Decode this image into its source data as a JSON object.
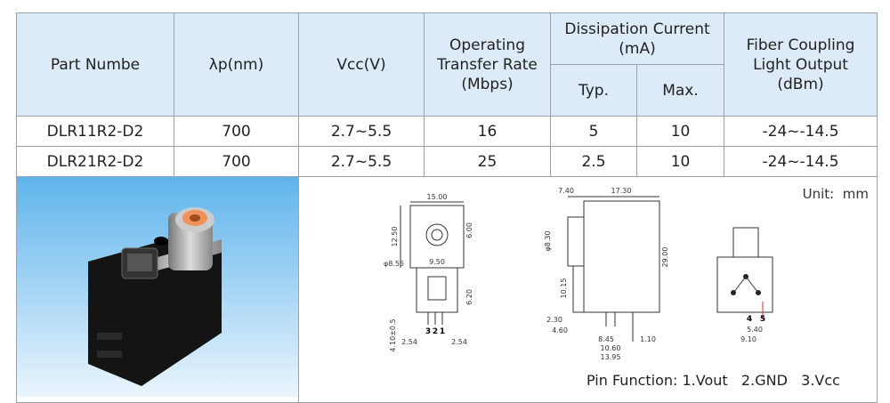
{
  "table": {
    "header": {
      "part": "Part Numbe",
      "wavelength": "λp(nm)",
      "vcc": "Vcc(V)",
      "rate": "Operating Transfer Rate (Mbps)",
      "current": "Dissipation Current (mA)",
      "typ": "Typ.",
      "max": "Max.",
      "output": "Fiber Coupling Light Output (dBm)"
    },
    "rows": [
      [
        "DLR11R2-D2",
        "700",
        "2.7~5.5",
        "16",
        "5",
        "10",
        "-24~-14.5"
      ],
      [
        "DLR21R2-D2",
        "700",
        "2.7~5.5",
        "25",
        "2.5",
        "10",
        "-24~-14.5"
      ]
    ]
  },
  "unit": "Unit:  mm",
  "pin_function": "Pin Function: 1.Vout   2.GND   3.Vcc",
  "drawings": [
    {
      "labels": [
        "15.00",
        "12.50",
        "6.00",
        "φ8.55",
        "9.50",
        "6.20",
        "3",
        "2",
        "1",
        "2.54",
        "2.54",
        "4.10±0.5"
      ]
    },
    {
      "labels": [
        "7.40",
        "17.30",
        "φ8.30",
        "29.00",
        "10.15",
        "2.30",
        "4.60",
        "8.45",
        "10.60",
        "13.95",
        "1.10"
      ]
    },
    {
      "labels": [
        "4",
        "5",
        "5.40",
        "9.10"
      ]
    }
  ]
}
